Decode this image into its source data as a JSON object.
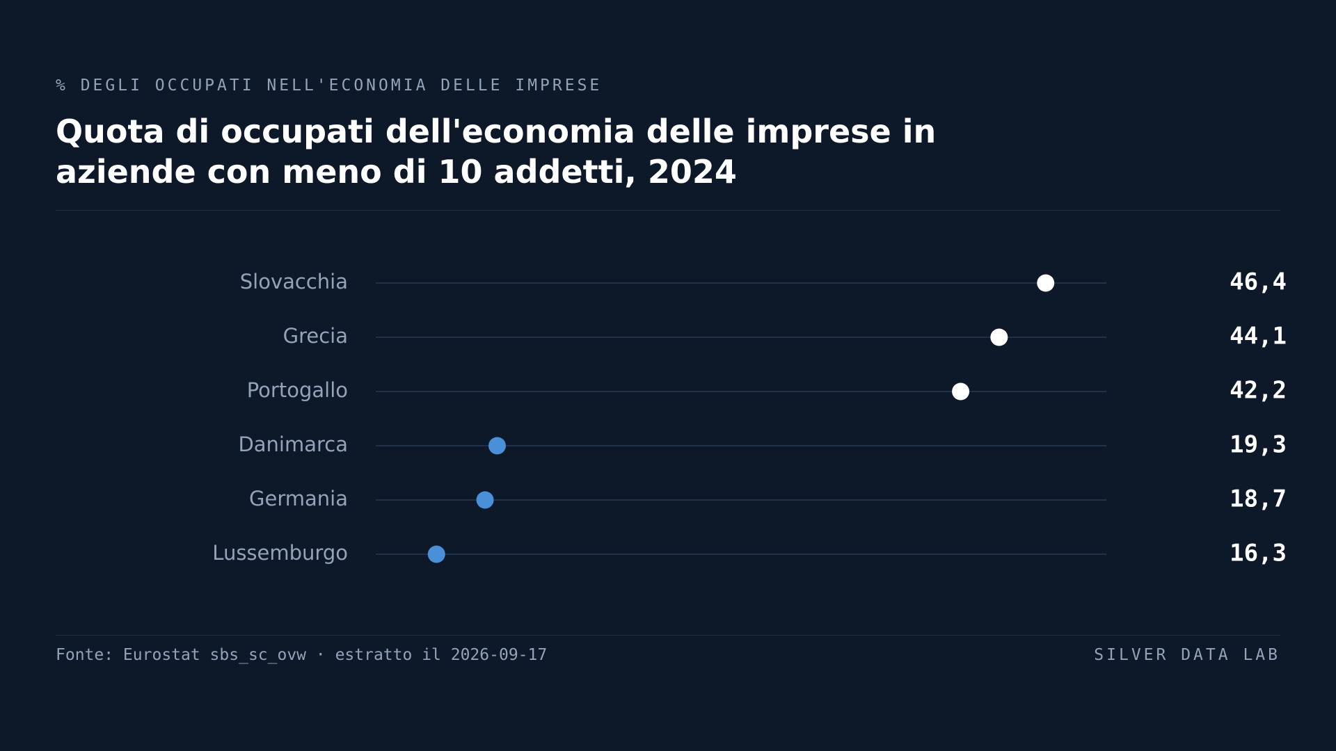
{
  "chart_data": {
    "type": "dot",
    "kicker": "% DEGLI OCCUPATI NELL'ECONOMIA DELLE IMPRESE",
    "title": "Quota di occupati dell'economia delle imprese in aziende con meno di 10 addetti, 2024",
    "categories": [
      "Slovacchia",
      "Grecia",
      "Portogallo",
      "Danimarca",
      "Germania",
      "Lussemburgo"
    ],
    "values": [
      46.4,
      44.1,
      42.2,
      19.3,
      18.7,
      16.3
    ],
    "value_labels": [
      "46,4",
      "44,1",
      "42,2",
      "19,3",
      "18,7",
      "16,3"
    ],
    "colors": [
      "#ffffff",
      "#ffffff",
      "#ffffff",
      "#4a90d9",
      "#4a90d9",
      "#4a90d9"
    ],
    "xlim": [
      13.3,
      49.4
    ],
    "source": "Fonte: Eurostat sbs_sc_ovw · estratto il 2026-09-17",
    "brand": "SILVER DATA LAB"
  }
}
